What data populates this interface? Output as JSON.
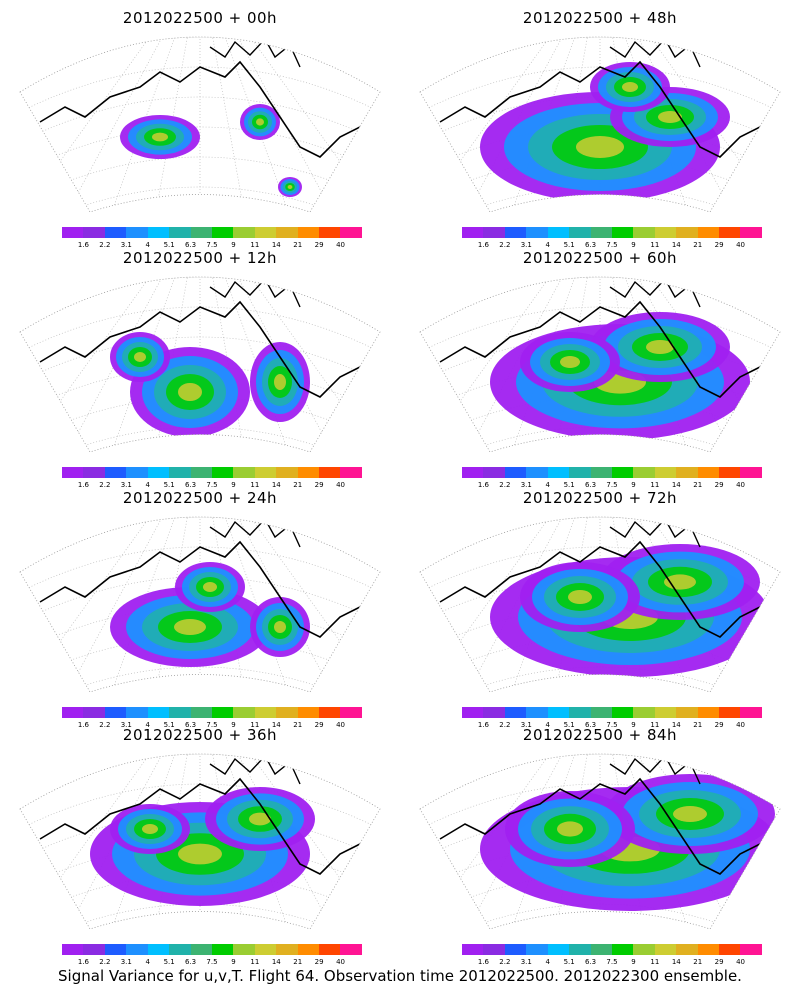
{
  "footer": "Signal Variance for u,v,T. Flight 64. Observation time 2012022500. 2012022300 ensemble.",
  "colorbar": {
    "levels": [
      "1.6",
      "2.2",
      "3.1",
      "4",
      "5.1",
      "6.3",
      "7.5",
      "9",
      "11",
      "14",
      "21",
      "29",
      "40"
    ],
    "colors": [
      "#a020f0",
      "#8a2be2",
      "#1e5cff",
      "#1e90ff",
      "#00bfff",
      "#20b2aa",
      "#3cb371",
      "#00cc00",
      "#9acd32",
      "#cdcd32",
      "#e0b020",
      "#ff8c00",
      "#ff4500",
      "#ff1493"
    ]
  },
  "chart_data": [
    {
      "type": "heatmap",
      "title": "2012022500 + 00h",
      "colorbar_levels": [
        1.6,
        2.2,
        3.1,
        4,
        5.1,
        6.3,
        7.5,
        9,
        11,
        14,
        21,
        29,
        40
      ]
    },
    {
      "type": "heatmap",
      "title": "2012022500 + 48h",
      "colorbar_levels": [
        1.6,
        2.2,
        3.1,
        4,
        5.1,
        6.3,
        7.5,
        9,
        11,
        14,
        21,
        29,
        40
      ]
    },
    {
      "type": "heatmap",
      "title": "2012022500 + 12h",
      "colorbar_levels": [
        1.6,
        2.2,
        3.1,
        4,
        5.1,
        6.3,
        7.5,
        9,
        11,
        14,
        21,
        29,
        40
      ]
    },
    {
      "type": "heatmap",
      "title": "2012022500 + 60h",
      "colorbar_levels": [
        1.6,
        2.2,
        3.1,
        4,
        5.1,
        6.3,
        7.5,
        9,
        11,
        14,
        21,
        29,
        40
      ]
    },
    {
      "type": "heatmap",
      "title": "2012022500 + 24h",
      "colorbar_levels": [
        1.6,
        2.2,
        3.1,
        4,
        5.1,
        6.3,
        7.5,
        9,
        11,
        14,
        21,
        29,
        40
      ]
    },
    {
      "type": "heatmap",
      "title": "2012022500 + 72h",
      "colorbar_levels": [
        1.6,
        2.2,
        3.1,
        4,
        5.1,
        6.3,
        7.5,
        9,
        11,
        14,
        21,
        29,
        40
      ]
    },
    {
      "type": "heatmap",
      "title": "2012022500 + 36h",
      "colorbar_levels": [
        1.6,
        2.2,
        3.1,
        4,
        5.1,
        6.3,
        7.5,
        9,
        11,
        14,
        21,
        29,
        40
      ]
    },
    {
      "type": "heatmap",
      "title": "2012022500 + 84h",
      "colorbar_levels": [
        1.6,
        2.2,
        3.1,
        4,
        5.1,
        6.3,
        7.5,
        9,
        11,
        14,
        21,
        29,
        40
      ]
    }
  ]
}
